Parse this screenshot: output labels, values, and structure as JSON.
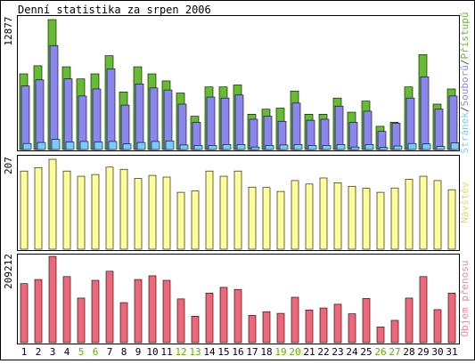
{
  "chart_data": {
    "type": "bar",
    "title": "Denní statistika za srpen 2006",
    "categories": [
      "1",
      "2",
      "3",
      "4",
      "5",
      "6",
      "7",
      "8",
      "9",
      "10",
      "11",
      "12",
      "13",
      "14",
      "15",
      "16",
      "17",
      "18",
      "19",
      "20",
      "21",
      "22",
      "23",
      "24",
      "25",
      "26",
      "27",
      "28",
      "29",
      "30",
      "31"
    ],
    "weekend_days": [
      "5",
      "6",
      "12",
      "13",
      "19",
      "20",
      "26",
      "27"
    ],
    "colors": {
      "weekday_label": "#000000",
      "weekend_label": "#66aa00",
      "hits": "#66bb33",
      "files": "#8888ee",
      "pages": "#77ccff",
      "visits": "#ffff99",
      "bytes": "#ee6677",
      "visits_label": "#dddd66",
      "bytes_label": "#ee8899"
    },
    "panels": [
      {
        "id": "hits-files-pages",
        "ymax_label": "12877",
        "ylim": [
          0,
          12877
        ],
        "side_label_parts": [
          "Stránek",
          "/",
          "Souborů",
          "/",
          "Přístupů"
        ],
        "series": [
          {
            "name": "Přístupů",
            "values": [
              7500,
              8300,
              12877,
              8200,
              7000,
              7500,
              9300,
              5700,
              8200,
              7500,
              6800,
              5600,
              3300,
              6200,
              6200,
              6400,
              3500,
              4000,
              4100,
              5800,
              3500,
              3500,
              5100,
              3700,
              4800,
              2300,
              2700,
              6200,
              9400,
              4500,
              6000
            ]
          },
          {
            "name": "Souborů",
            "values": [
              6300,
              6900,
              10300,
              7000,
              5300,
              6000,
              8000,
              4400,
              6500,
              6100,
              5900,
              4500,
              2700,
              5200,
              5100,
              5400,
              3000,
              3300,
              2800,
              4600,
              2900,
              3000,
              4300,
              2700,
              3800,
              1800,
              2600,
              5100,
              7200,
              4000,
              5300
            ]
          },
          {
            "name": "Stránek",
            "values": [
              600,
              700,
              1000,
              750,
              800,
              750,
              800,
              550,
              700,
              800,
              850,
              450,
              400,
              400,
              500,
              500,
              250,
              400,
              450,
              500,
              400,
              400,
              500,
              250,
              500,
              200,
              350,
              600,
              550,
              300,
              650
            ]
          }
        ]
      },
      {
        "id": "visits",
        "ymax_label": "207",
        "ylim": [
          0,
          207
        ],
        "side_label_parts": [
          "Návštěv"
        ],
        "series": [
          {
            "name": "Návštěv",
            "values": [
              180,
              188,
              207,
              180,
              168,
              172,
              189,
              184,
              163,
              170,
              166,
              131,
              134,
              180,
              168,
              180,
              143,
              142,
              133,
              158,
              150,
              164,
              153,
              145,
              140,
              131,
              141,
              161,
              168,
              158,
              137
            ]
          }
        ]
      },
      {
        "id": "bytes",
        "ymax_label": "209212",
        "ylim": [
          0,
          209212
        ],
        "side_label_parts": [
          "Objem přenosu"
        ],
        "series": [
          {
            "name": "Objem přenosu",
            "values": [
              143000,
              153000,
              209212,
              160000,
              108000,
              151000,
              173000,
              97000,
              153000,
              162000,
              151000,
              106000,
              64000,
              120000,
              134000,
              129000,
              66000,
              75000,
              71000,
              110000,
              79000,
              84000,
              93000,
              70000,
              107000,
              38000,
              54000,
              108000,
              160000,
              80000,
              120000
            ]
          }
        ]
      }
    ]
  }
}
